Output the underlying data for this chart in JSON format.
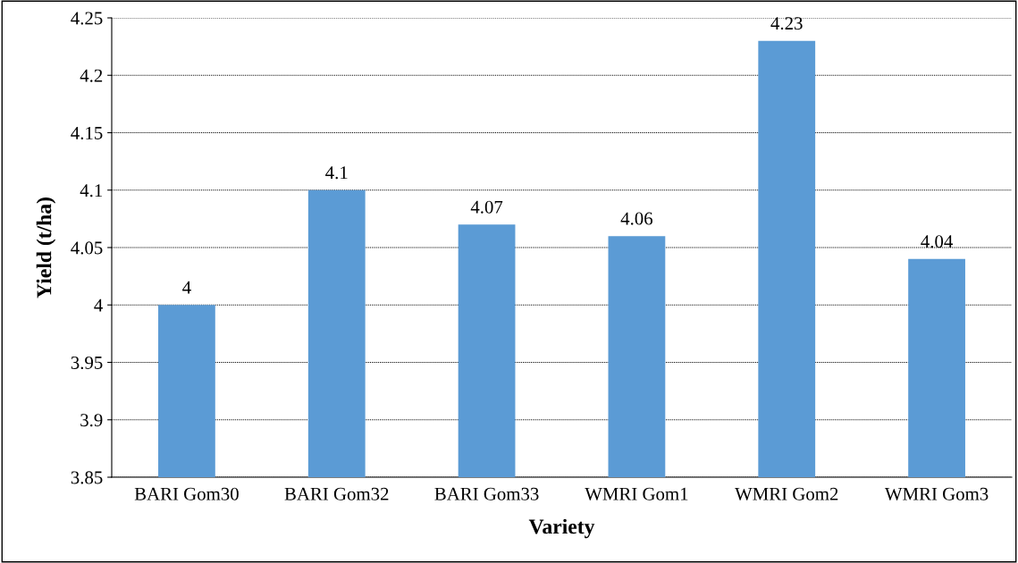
{
  "chart_data": {
    "type": "bar",
    "xlabel": "Variety",
    "ylabel": "Yield (t/ha)",
    "categories": [
      "BARI Gom30",
      "BARI Gom32",
      "BARI Gom33",
      "WMRI Gom1",
      "WMRI Gom2",
      "WMRI Gom3"
    ],
    "values": [
      4,
      4.1,
      4.07,
      4.06,
      4.23,
      4.04
    ],
    "color": "#5b9bd5",
    "ylim": [
      3.85,
      4.25
    ],
    "yticks": [
      3.85,
      3.9,
      3.95,
      4,
      4.05,
      4.1,
      4.15,
      4.2,
      4.25
    ],
    "grid": "y",
    "data_labels": true
  }
}
